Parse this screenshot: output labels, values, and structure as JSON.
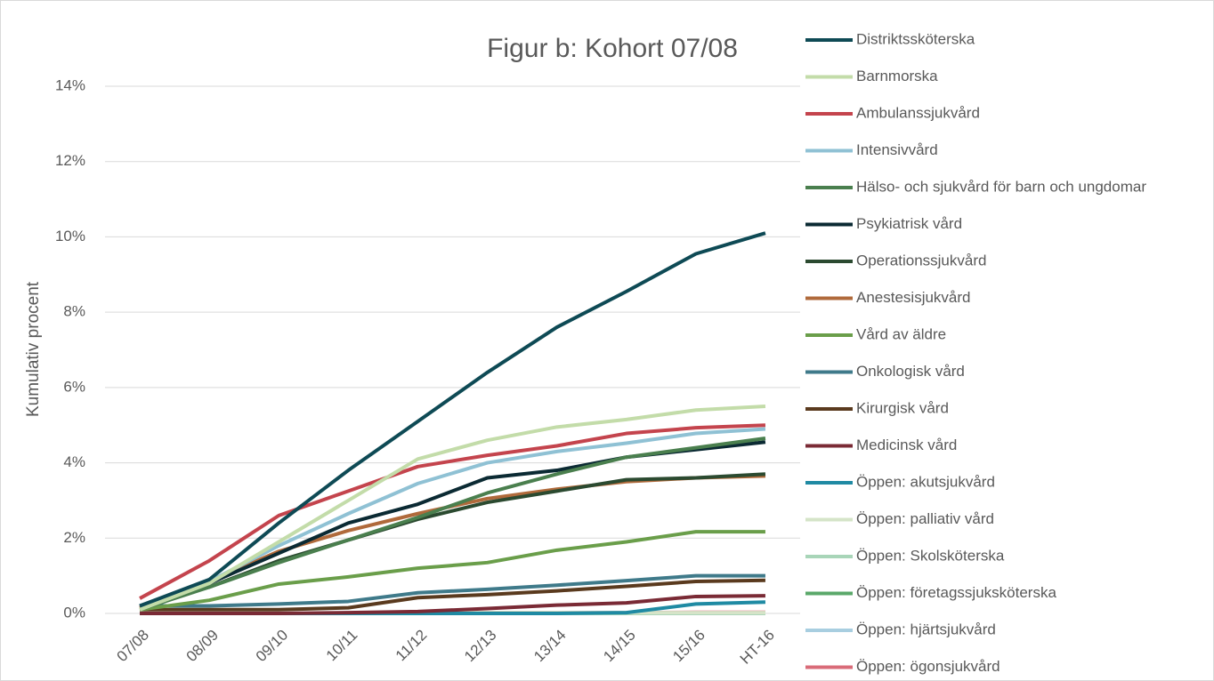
{
  "chart_data": {
    "type": "line",
    "title": "Figur b: Kohort 07/08",
    "y_label": "Kumulativ procent",
    "categories": [
      "07/08",
      "08/09",
      "09/10",
      "10/11",
      "11/12",
      "12/13",
      "13/14",
      "14/15",
      "15/16",
      "HT-16"
    ],
    "ylim": [
      0,
      14
    ],
    "yticks": [
      {
        "value": 0,
        "label": "0%"
      },
      {
        "value": 2,
        "label": "2%"
      },
      {
        "value": 4,
        "label": "4%"
      },
      {
        "value": 6,
        "label": "6%"
      },
      {
        "value": 8,
        "label": "8%"
      },
      {
        "value": 10,
        "label": "10%"
      },
      {
        "value": 12,
        "label": "12%"
      },
      {
        "value": 14,
        "label": "14%"
      }
    ],
    "grid": true,
    "legend": "right",
    "series": [
      {
        "name": "Distriktssköterska",
        "color": "#0e4a55",
        "values": [
          0.2,
          0.9,
          2.4,
          3.8,
          5.1,
          6.4,
          7.6,
          8.55,
          9.55,
          10.1
        ]
      },
      {
        "name": "Barnmorska",
        "color": "#c3dca9",
        "values": [
          0.1,
          0.8,
          1.9,
          3.0,
          4.1,
          4.6,
          4.95,
          5.15,
          5.4,
          5.5
        ]
      },
      {
        "name": "Ambulanssjukvård",
        "color": "#c4444d",
        "values": [
          0.4,
          1.4,
          2.6,
          3.25,
          3.9,
          4.2,
          4.45,
          4.78,
          4.93,
          5.0
        ]
      },
      {
        "name": "Intensivvård",
        "color": "#8fc1d4",
        "values": [
          0.2,
          0.85,
          1.8,
          2.65,
          3.45,
          4.0,
          4.3,
          4.52,
          4.78,
          4.9
        ]
      },
      {
        "name": "Hälso- och sjukvård för barn och ungdomar",
        "color": "#4a7f4e",
        "values": [
          0.1,
          0.7,
          1.35,
          1.95,
          2.55,
          3.2,
          3.7,
          4.15,
          4.4,
          4.65
        ]
      },
      {
        "name": "Psykiatrisk vård",
        "color": "#0b2a33",
        "values": [
          0.2,
          0.8,
          1.6,
          2.4,
          2.9,
          3.6,
          3.8,
          4.15,
          4.35,
          4.55
        ]
      },
      {
        "name": "Operationssjukvård",
        "color": "#2b4a30",
        "values": [
          0.2,
          0.7,
          1.4,
          1.95,
          2.5,
          2.95,
          3.25,
          3.55,
          3.6,
          3.7
        ]
      },
      {
        "name": "Anestesisjukvård",
        "color": "#b06a3b",
        "values": [
          0.15,
          0.85,
          1.65,
          2.2,
          2.65,
          3.05,
          3.3,
          3.5,
          3.6,
          3.65
        ]
      },
      {
        "name": "Vård av äldre",
        "color": "#6a9e4a",
        "values": [
          0.1,
          0.35,
          0.78,
          0.97,
          1.2,
          1.35,
          1.68,
          1.9,
          2.17,
          2.17
        ]
      },
      {
        "name": "Onkologisk vård",
        "color": "#3f7a8a",
        "values": [
          0.2,
          0.2,
          0.25,
          0.32,
          0.55,
          0.64,
          0.75,
          0.87,
          1.0,
          1.0
        ]
      },
      {
        "name": "Kirurgisk vård",
        "color": "#5a3a1e",
        "values": [
          0.1,
          0.1,
          0.1,
          0.15,
          0.42,
          0.5,
          0.6,
          0.72,
          0.85,
          0.88
        ]
      },
      {
        "name": "Medicinsk vård",
        "color": "#7a2a35",
        "values": [
          0,
          0,
          0,
          0.02,
          0.05,
          0.13,
          0.22,
          0.28,
          0.45,
          0.47
        ]
      },
      {
        "name": "Öppen: akutsjukvård",
        "color": "#1f8aa3",
        "values": [
          0,
          0,
          0,
          0,
          0,
          0,
          0,
          0.02,
          0.25,
          0.3
        ]
      },
      {
        "name": "Öppen: palliativ vård",
        "color": "#d5e4c8",
        "values": [
          0,
          0,
          0,
          0,
          0.02,
          0.02,
          0.02,
          0.02,
          0.02,
          0.02
        ]
      },
      {
        "name": "Öppen: Skolsköterska",
        "color": "#a8d5b8",
        "values": [
          0,
          0,
          0,
          0,
          0,
          0,
          0,
          0,
          0,
          0
        ]
      },
      {
        "name": "Öppen: företagssjuksköterska",
        "color": "#5aa86a",
        "values": [
          0,
          0,
          0,
          0,
          0,
          0,
          0,
          0,
          0,
          0
        ]
      },
      {
        "name": "Öppen: hjärtsjukvård",
        "color": "#a8cee0",
        "values": [
          0,
          0,
          0,
          0,
          0,
          0,
          0,
          0,
          0,
          0
        ]
      },
      {
        "name": "Öppen: ögonsjukvård",
        "color": "#d96b78",
        "values": [
          0,
          0,
          0,
          0,
          0.02,
          0.02,
          0.02,
          0.02,
          0.03,
          0.03
        ]
      }
    ]
  }
}
